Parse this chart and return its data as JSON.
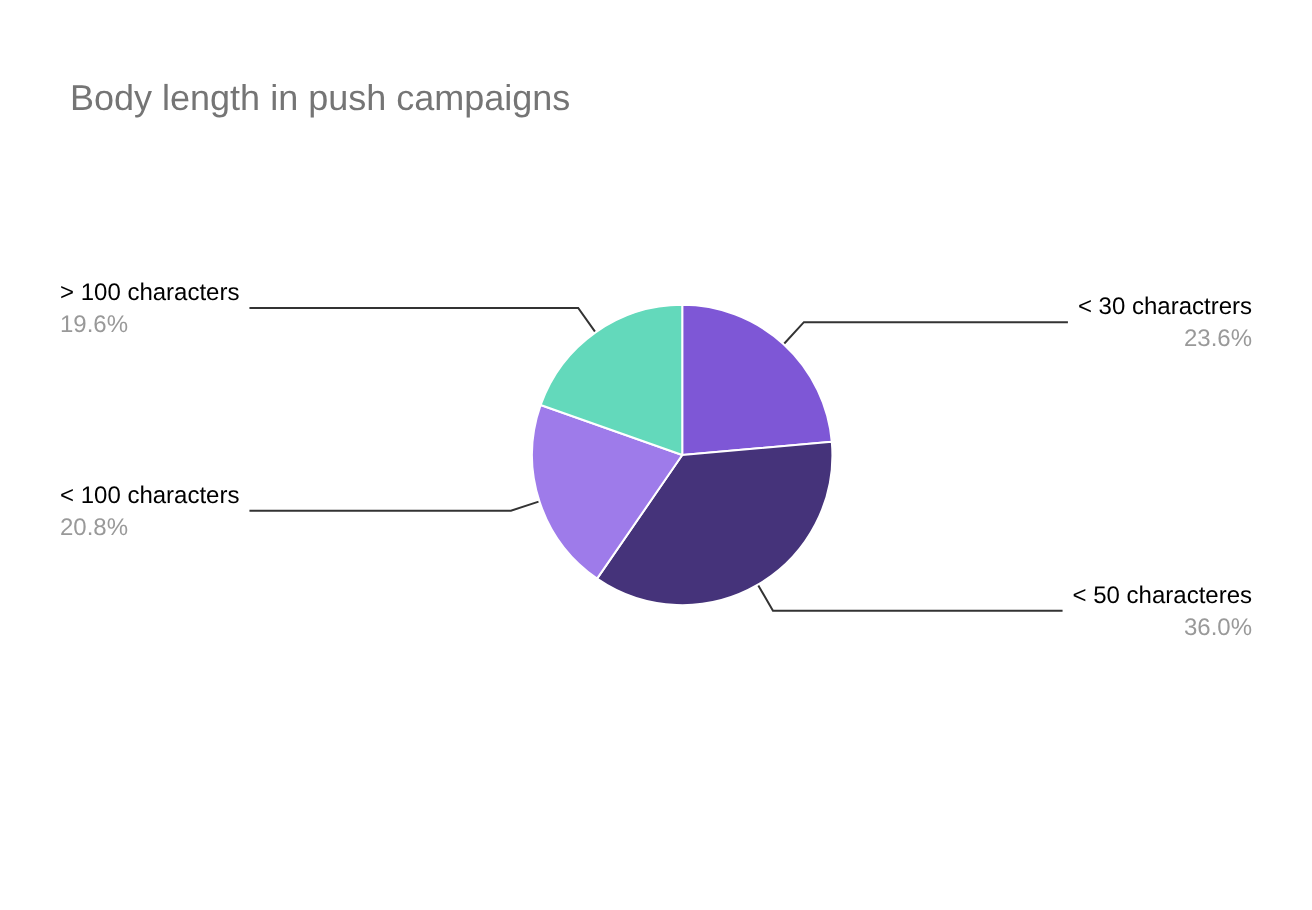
{
  "chart_data": {
    "type": "pie",
    "title": "Body length in push campaigns",
    "categories": [
      "< 30 charactrers",
      "< 50 characteres",
      "< 100 characters",
      "> 100 characters"
    ],
    "values": [
      23.6,
      36.0,
      20.8,
      19.6
    ],
    "value_labels": [
      "23.6%",
      "36.0%",
      "20.8%",
      "19.6%"
    ],
    "colors": [
      "#7e57d6",
      "#45337a",
      "#9e7bea",
      "#63d9bb"
    ]
  }
}
